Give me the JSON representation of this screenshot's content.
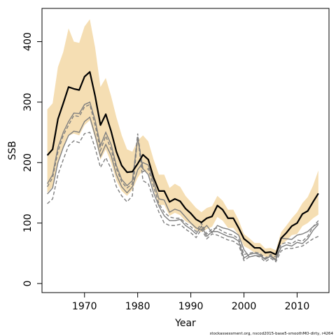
{
  "chart_data": {
    "type": "line",
    "xlabel": "Year",
    "ylabel": "SSB",
    "footer": "stockassessment.org, nscod2015-base5-smoothMO-dirty, r4264",
    "xlim": [
      1962,
      2016
    ],
    "ylim": [
      -15,
      455
    ],
    "x_ticks": [
      1970,
      1980,
      1990,
      2000,
      2010
    ],
    "y_ticks": [
      0,
      100,
      200,
      300,
      400
    ],
    "colors": {
      "band": "#f5deb3",
      "estimate": "#000000",
      "retro": "#7f7f7f"
    },
    "x": [
      1963,
      1964,
      1965,
      1966,
      1967,
      1968,
      1969,
      1970,
      1971,
      1972,
      1973,
      1974,
      1975,
      1976,
      1977,
      1978,
      1979,
      1980,
      1981,
      1982,
      1983,
      1984,
      1985,
      1986,
      1987,
      1988,
      1989,
      1990,
      1991,
      1992,
      1993,
      1994,
      1995,
      1996,
      1997,
      1998,
      1999,
      2000,
      2001,
      2002,
      2003,
      2004,
      2005,
      2006,
      2007,
      2008,
      2009,
      2010,
      2011,
      2012,
      2013,
      2014
    ],
    "series": [
      {
        "role": "estimate",
        "values": [
          212,
          222,
          272,
          298,
          325,
          322,
          320,
          342,
          350,
          310,
          262,
          280,
          252,
          218,
          195,
          184,
          185,
          198,
          213,
          205,
          175,
          153,
          153,
          135,
          140,
          136,
          124,
          116,
          106,
          101,
          108,
          111,
          129,
          122,
          108,
          108,
          92,
          74,
          67,
          59,
          59,
          51,
          52,
          48,
          75,
          84,
          95,
          100,
          115,
          120,
          135,
          149
        ]
      },
      {
        "role": "ci-upper",
        "values": [
          288,
          298,
          358,
          383,
          422,
          400,
          398,
          425,
          437,
          390,
          325,
          340,
          310,
          275,
          245,
          222,
          218,
          236,
          245,
          235,
          205,
          180,
          180,
          158,
          165,
          160,
          145,
          135,
          125,
          118,
          125,
          128,
          145,
          137,
          122,
          122,
          105,
          82,
          75,
          67,
          67,
          58,
          59,
          55,
          85,
          96,
          108,
          118,
          133,
          143,
          162,
          187
        ]
      },
      {
        "role": "ci-lower",
        "values": [
          150,
          160,
          200,
          225,
          245,
          248,
          245,
          262,
          270,
          240,
          205,
          222,
          200,
          170,
          153,
          145,
          155,
          175,
          188,
          182,
          155,
          130,
          130,
          112,
          117,
          113,
          103,
          98,
          88,
          85,
          90,
          94,
          110,
          104,
          92,
          92,
          80,
          62,
          57,
          51,
          50,
          44,
          45,
          41,
          64,
          71,
          80,
          82,
          95,
          100,
          108,
          114
        ]
      },
      {
        "role": "retro",
        "values": [
          148,
          158,
          200,
          225,
          245,
          252,
          250,
          268,
          275,
          245,
          210,
          230,
          212,
          180,
          160,
          150,
          160,
          188,
          200,
          196,
          168,
          140,
          138,
          118,
          123,
          120,
          110,
          100,
          92,
          88,
          96,
          84,
          96,
          92,
          90,
          86,
          80,
          56,
          44,
          46,
          46,
          40,
          45,
          38,
          75,
          74,
          73,
          80,
          82,
          86,
          94,
          100
        ]
      },
      {
        "role": "retro",
        "values": [
          160,
          175,
          218,
          245,
          262,
          278,
          276,
          292,
          296,
          262,
          220,
          244,
          222,
          190,
          168,
          158,
          165,
          248,
          185,
          190,
          160,
          132,
          118,
          110,
          108,
          108,
          100,
          94,
          86,
          100,
          82,
          90,
          92,
          86,
          82,
          80,
          74,
          48,
          50,
          52,
          50,
          42,
          48,
          44,
          65,
          68,
          66,
          72,
          70,
          78,
          94,
          104
        ]
      },
      {
        "role": "retro",
        "values": [
          165,
          180,
          225,
          250,
          268,
          282,
          281,
          296,
          300,
          270,
          228,
          250,
          230,
          195,
          172,
          162,
          170,
          240,
          190,
          180,
          150,
          128,
          112,
          104,
          104,
          106,
          96,
          90,
          82,
          95,
          78,
          86,
          86,
          82,
          78,
          76,
          70,
          42,
          48,
          50,
          48,
          40,
          46,
          40,
          60,
          64,
          62,
          68,
          66,
          74,
          88,
          98
        ]
      },
      {
        "role": "retro",
        "values": [
          132,
          140,
          180,
          205,
          228,
          236,
          233,
          248,
          250,
          224,
          192,
          208,
          190,
          160,
          145,
          135,
          145,
          244,
          170,
          165,
          140,
          118,
          100,
          96,
          96,
          98,
          90,
          84,
          76,
          90,
          74,
          82,
          80,
          76,
          72,
          70,
          64,
          38,
          44,
          46,
          44,
          36,
          42,
          36,
          54,
          58,
          58,
          60,
          62,
          68,
          74,
          78
        ]
      }
    ]
  }
}
